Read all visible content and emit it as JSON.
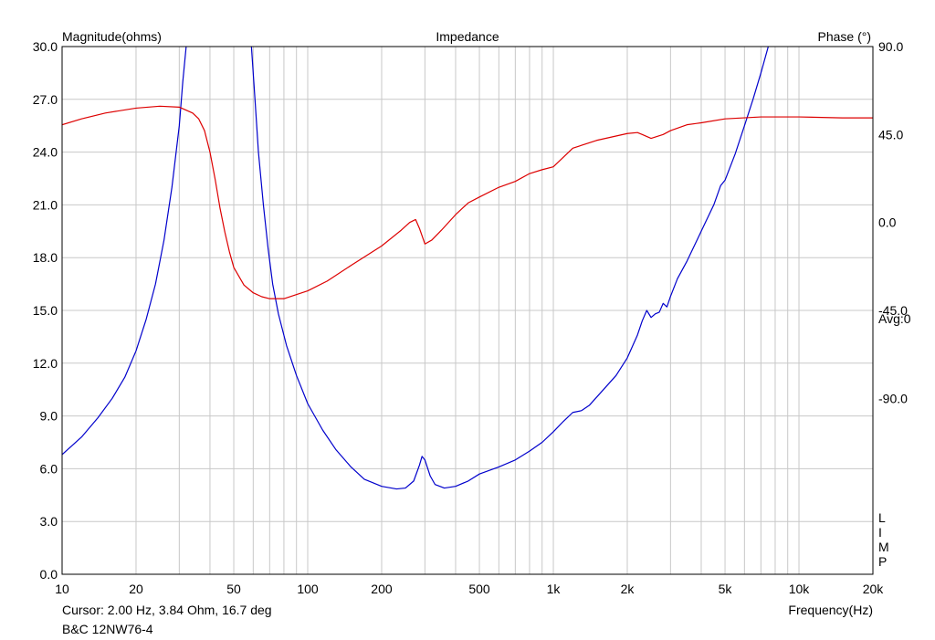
{
  "chart_data": {
    "type": "line",
    "title": "Impedance",
    "ylabel_left": "Magnitude(ohms)",
    "ylabel_right": "Phase (°)",
    "xlabel": "Frequency(Hz)",
    "x_scale": "log",
    "xlim": [
      10,
      20000
    ],
    "ylim_left": [
      0,
      30
    ],
    "ylim_right": [
      -180,
      90
    ],
    "grid": true,
    "x_ticks": [
      {
        "value": 10,
        "label": "10"
      },
      {
        "value": 20,
        "label": "20"
      },
      {
        "value": 50,
        "label": "50"
      },
      {
        "value": 100,
        "label": "100"
      },
      {
        "value": 200,
        "label": "200"
      },
      {
        "value": 500,
        "label": "500"
      },
      {
        "value": 1000,
        "label": "1k"
      },
      {
        "value": 2000,
        "label": "2k"
      },
      {
        "value": 5000,
        "label": "5k"
      },
      {
        "value": 10000,
        "label": "10k"
      },
      {
        "value": 20000,
        "label": "20k"
      }
    ],
    "y_ticks_left": [
      {
        "value": 0,
        "label": "0.0"
      },
      {
        "value": 3,
        "label": "3.0"
      },
      {
        "value": 6,
        "label": "6.0"
      },
      {
        "value": 9,
        "label": "9.0"
      },
      {
        "value": 12,
        "label": "12.0"
      },
      {
        "value": 15,
        "label": "15.0"
      },
      {
        "value": 18,
        "label": "18.0"
      },
      {
        "value": 21,
        "label": "21.0"
      },
      {
        "value": 24,
        "label": "24.0"
      },
      {
        "value": 27,
        "label": "27.0"
      },
      {
        "value": 30,
        "label": "30.0"
      }
    ],
    "y_ticks_right": [
      {
        "value": 90,
        "label": "90.0"
      },
      {
        "value": 45,
        "label": "45.0"
      },
      {
        "value": 0,
        "label": "0.0"
      },
      {
        "value": -45,
        "label": "-45.0"
      },
      {
        "value": -90,
        "label": "-90.0"
      }
    ],
    "right_annotation": "Avg:0",
    "limp_letters": [
      "L",
      "I",
      "M",
      "P"
    ],
    "cursor_readout": "Cursor: 2.00 Hz, 3.84 Ohm, 16.7 deg",
    "device_label": "B&C 12NW76-4",
    "series": [
      {
        "name": "Magnitude",
        "axis": "left",
        "color": "#0000cc",
        "points": [
          [
            10,
            6.8
          ],
          [
            12,
            7.8
          ],
          [
            14,
            8.9
          ],
          [
            16,
            10.0
          ],
          [
            18,
            11.2
          ],
          [
            20,
            12.7
          ],
          [
            22,
            14.5
          ],
          [
            24,
            16.5
          ],
          [
            26,
            19.0
          ],
          [
            28,
            22.0
          ],
          [
            30,
            25.5
          ],
          [
            31,
            28.0
          ],
          [
            32,
            30.0
          ]
        ]
      },
      {
        "name": "Magnitude",
        "axis": "left",
        "color": "#0000cc",
        "points": [
          [
            59,
            30.0
          ],
          [
            61,
            27.0
          ],
          [
            63,
            24.0
          ],
          [
            66,
            21.0
          ],
          [
            69,
            18.5
          ],
          [
            72,
            16.5
          ],
          [
            76,
            14.8
          ],
          [
            82,
            13.0
          ],
          [
            90,
            11.3
          ],
          [
            100,
            9.7
          ],
          [
            115,
            8.2
          ],
          [
            130,
            7.1
          ],
          [
            150,
            6.1
          ],
          [
            170,
            5.4
          ],
          [
            200,
            5.0
          ],
          [
            230,
            4.85
          ],
          [
            250,
            4.9
          ],
          [
            270,
            5.3
          ],
          [
            285,
            6.2
          ],
          [
            292,
            6.7
          ],
          [
            300,
            6.5
          ],
          [
            315,
            5.6
          ],
          [
            330,
            5.1
          ],
          [
            360,
            4.9
          ],
          [
            400,
            5.0
          ],
          [
            450,
            5.3
          ],
          [
            500,
            5.7
          ],
          [
            600,
            6.1
          ],
          [
            700,
            6.5
          ],
          [
            800,
            7.0
          ],
          [
            900,
            7.5
          ],
          [
            1000,
            8.1
          ],
          [
            1100,
            8.7
          ],
          [
            1200,
            9.2
          ],
          [
            1300,
            9.3
          ],
          [
            1400,
            9.6
          ],
          [
            1600,
            10.5
          ],
          [
            1800,
            11.3
          ],
          [
            2000,
            12.3
          ],
          [
            2200,
            13.6
          ],
          [
            2300,
            14.4
          ],
          [
            2400,
            15.0
          ],
          [
            2500,
            14.6
          ],
          [
            2600,
            14.8
          ],
          [
            2700,
            14.9
          ],
          [
            2800,
            15.4
          ],
          [
            2900,
            15.2
          ],
          [
            3000,
            15.8
          ],
          [
            3200,
            16.8
          ],
          [
            3500,
            17.8
          ],
          [
            4000,
            19.5
          ],
          [
            4500,
            21.0
          ],
          [
            4800,
            22.1
          ],
          [
            5000,
            22.4
          ],
          [
            5500,
            23.9
          ],
          [
            6000,
            25.5
          ],
          [
            6500,
            27.0
          ],
          [
            7000,
            28.5
          ],
          [
            7500,
            30.0
          ]
        ]
      },
      {
        "name": "Phase",
        "axis": "right",
        "color": "#dd0000",
        "points": [
          [
            10,
            50
          ],
          [
            12,
            53
          ],
          [
            15,
            56
          ],
          [
            20,
            58.5
          ],
          [
            25,
            59.5
          ],
          [
            30,
            59
          ],
          [
            34,
            56
          ],
          [
            36,
            53
          ],
          [
            38,
            47
          ],
          [
            40,
            36
          ],
          [
            42,
            22
          ],
          [
            44,
            7
          ],
          [
            46,
            -5
          ],
          [
            48,
            -15
          ],
          [
            50,
            -23
          ],
          [
            55,
            -32
          ],
          [
            60,
            -36
          ],
          [
            65,
            -38
          ],
          [
            70,
            -39
          ],
          [
            80,
            -39
          ],
          [
            100,
            -35
          ],
          [
            120,
            -30
          ],
          [
            150,
            -22
          ],
          [
            200,
            -12
          ],
          [
            240,
            -4
          ],
          [
            260,
            0
          ],
          [
            275,
            1.5
          ],
          [
            285,
            -3
          ],
          [
            300,
            -11
          ],
          [
            320,
            -9
          ],
          [
            350,
            -4
          ],
          [
            400,
            4
          ],
          [
            450,
            10
          ],
          [
            500,
            13
          ],
          [
            600,
            18
          ],
          [
            700,
            21
          ],
          [
            800,
            25
          ],
          [
            900,
            27
          ],
          [
            1000,
            28.5
          ],
          [
            1200,
            38
          ],
          [
            1500,
            42
          ],
          [
            2000,
            45.5
          ],
          [
            2200,
            46
          ],
          [
            2300,
            45
          ],
          [
            2500,
            43
          ],
          [
            2800,
            45
          ],
          [
            3000,
            47
          ],
          [
            3500,
            50
          ],
          [
            4000,
            51
          ],
          [
            5000,
            53
          ],
          [
            7000,
            54
          ],
          [
            10000,
            54
          ],
          [
            15000,
            53.5
          ],
          [
            20000,
            53.5
          ]
        ]
      }
    ]
  }
}
